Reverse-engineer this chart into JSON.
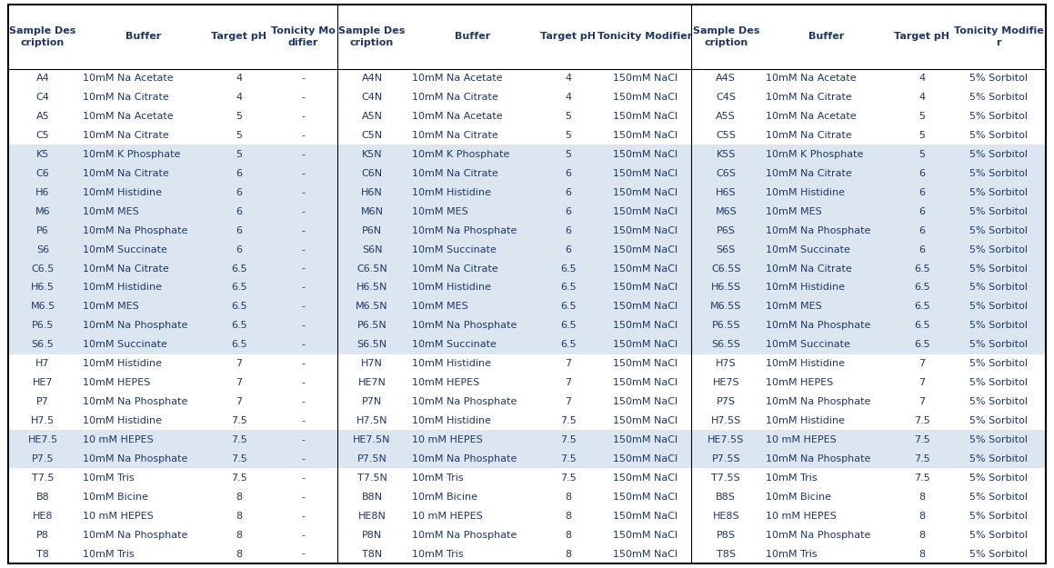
{
  "rows": [
    [
      "A4",
      "10mM Na Acetate",
      "4",
      "-",
      "A4N",
      "10mM Na Acetate",
      "4",
      "150mM NaCl",
      "A4S",
      "10mM Na Acetate",
      "4",
      "5% Sorbitol"
    ],
    [
      "C4",
      "10mM Na Citrate",
      "4",
      "-",
      "C4N",
      "10mM Na Citrate",
      "4",
      "150mM NaCl",
      "C4S",
      "10mM Na Citrate",
      "4",
      "5% Sorbitol"
    ],
    [
      "A5",
      "10mM Na Acetate",
      "5",
      "-",
      "A5N",
      "10mM Na Acetate",
      "5",
      "150mM NaCl",
      "A5S",
      "10mM Na Acetate",
      "5",
      "5% Sorbitol"
    ],
    [
      "C5",
      "10mM Na Citrate",
      "5",
      "-",
      "C5N",
      "10mM Na Citrate",
      "5",
      "150mM NaCl",
      "C5S",
      "10mM Na Citrate",
      "5",
      "5% Sorbitol"
    ],
    [
      "K5",
      "10mM K Phosphate",
      "5",
      "-",
      "K5N",
      "10mM K Phosphate",
      "5",
      "150mM NaCl",
      "K5S",
      "10mM K Phosphate",
      "5",
      "5% Sorbitol"
    ],
    [
      "C6",
      "10mM Na Citrate",
      "6",
      "-",
      "C6N",
      "10mM Na Citrate",
      "6",
      "150mM NaCl",
      "C6S",
      "10mM Na Citrate",
      "6",
      "5% Sorbitol"
    ],
    [
      "H6",
      "10mM Histidine",
      "6",
      "-",
      "H6N",
      "10mM Histidine",
      "6",
      "150mM NaCl",
      "H6S",
      "10mM Histidine",
      "6",
      "5% Sorbitol"
    ],
    [
      "M6",
      "10mM MES",
      "6",
      "-",
      "M6N",
      "10mM MES",
      "6",
      "150mM NaCl",
      "M6S",
      "10mM MES",
      "6",
      "5% Sorbitol"
    ],
    [
      "P6",
      "10mM Na Phosphate",
      "6",
      "-",
      "P6N",
      "10mM Na Phosphate",
      "6",
      "150mM NaCl",
      "P6S",
      "10mM Na Phosphate",
      "6",
      "5% Sorbitol"
    ],
    [
      "S6",
      "10mM Succinate",
      "6",
      "-",
      "S6N",
      "10mM Succinate",
      "6",
      "150mM NaCl",
      "S6S",
      "10mM Succinate",
      "6",
      "5% Sorbitol"
    ],
    [
      "C6.5",
      "10mM Na Citrate",
      "6.5",
      "-",
      "C6.5N",
      "10mM Na Citrate",
      "6.5",
      "150mM NaCl",
      "C6.5S",
      "10mM Na Citrate",
      "6.5",
      "5% Sorbitol"
    ],
    [
      "H6.5",
      "10mM Histidine",
      "6.5",
      "-",
      "H6.5N",
      "10mM Histidine",
      "6.5",
      "150mM NaCl",
      "H6.5S",
      "10mM Histidine",
      "6.5",
      "5% Sorbitol"
    ],
    [
      "M6.5",
      "10mM MES",
      "6.5",
      "-",
      "M6.5N",
      "10mM MES",
      "6.5",
      "150mM NaCl",
      "M6.5S",
      "10mM MES",
      "6.5",
      "5% Sorbitol"
    ],
    [
      "P6.5",
      "10mM Na Phosphate",
      "6.5",
      "-",
      "P6.5N",
      "10mM Na Phosphate",
      "6.5",
      "150mM NaCl",
      "P6.5S",
      "10mM Na Phosphate",
      "6.5",
      "5% Sorbitol"
    ],
    [
      "S6.5",
      "10mM Succinate",
      "6.5",
      "-",
      "S6.5N",
      "10mM Succinate",
      "6.5",
      "150mM NaCl",
      "S6.5S",
      "10mM Succinate",
      "6.5",
      "5% Sorbitol"
    ],
    [
      "H7",
      "10mM Histidine",
      "7",
      "-",
      "H7N",
      "10mM Histidine",
      "7",
      "150mM NaCl",
      "H7S",
      "10mM Histidine",
      "7",
      "5% Sorbitol"
    ],
    [
      "HE7",
      "10mM HEPES",
      "7",
      "-",
      "HE7N",
      "10mM HEPES",
      "7",
      "150mM NaCl",
      "HE7S",
      "10mM HEPES",
      "7",
      "5% Sorbitol"
    ],
    [
      "P7",
      "10mM Na Phosphate",
      "7",
      "-",
      "P7N",
      "10mM Na Phosphate",
      "7",
      "150mM NaCl",
      "P7S",
      "10mM Na Phosphate",
      "7",
      "5% Sorbitol"
    ],
    [
      "H7.5",
      "10mM Histidine",
      "7.5",
      "-",
      "H7.5N",
      "10mM Histidine",
      "7.5",
      "150mM NaCl",
      "H7.5S",
      "10mM Histidine",
      "7.5",
      "5% Sorbitol"
    ],
    [
      "HE7.5",
      "10 mM HEPES",
      "7.5",
      "-",
      "HE7.5N",
      "10 mM HEPES",
      "7.5",
      "150mM NaCl",
      "HE7.5S",
      "10 mM HEPES",
      "7.5",
      "5% Sorbitol"
    ],
    [
      "P7.5",
      "10mM Na Phosphate",
      "7.5",
      "-",
      "P7.5N",
      "10mM Na Phosphate",
      "7.5",
      "150mM NaCl",
      "P7.5S",
      "10mM Na Phosphate",
      "7.5",
      "5% Sorbitol"
    ],
    [
      "T7.5",
      "10mM Tris",
      "7.5",
      "-",
      "T7.5N",
      "10mM Tris",
      "7.5",
      "150mM NaCl",
      "T7.5S",
      "10mM Tris",
      "7.5",
      "5% Sorbitol"
    ],
    [
      "B8",
      "10mM Bicine",
      "8",
      "-",
      "B8N",
      "10mM Bicine",
      "8",
      "150mM NaCl",
      "B8S",
      "10mM Bicine",
      "8",
      "5% Sorbitol"
    ],
    [
      "HE8",
      "10 mM HEPES",
      "8",
      "-",
      "HE8N",
      "10 mM HEPES",
      "8",
      "150mM NaCl",
      "HE8S",
      "10 mM HEPES",
      "8",
      "5% Sorbitol"
    ],
    [
      "P8",
      "10mM Na Phosphate",
      "8",
      "-",
      "P8N",
      "10mM Na Phosphate",
      "8",
      "150mM NaCl",
      "P8S",
      "10mM Na Phosphate",
      "8",
      "5% Sorbitol"
    ],
    [
      "T8",
      "10mM Tris",
      "8",
      "-",
      "T8N",
      "10mM Tris",
      "8",
      "150mM NaCl",
      "T8S",
      "10mM Tris",
      "8",
      "5% Sorbitol"
    ]
  ],
  "header_rows": [
    [
      "Sample Des\ncription",
      "Buffer",
      "Target pH",
      "Tonicity Mo\ndifier",
      "Sample Des\ncription",
      "Buffer",
      "Target pH",
      "Tonicity Modifier",
      "Sample Des\ncription",
      "Buffer",
      "Target pH",
      "Tonicity Modifie\nr"
    ]
  ],
  "col_widths_norm": [
    0.72,
    1.38,
    0.63,
    0.72,
    0.72,
    1.38,
    0.63,
    0.98,
    0.72,
    1.38,
    0.63,
    0.98
  ],
  "row_bg_light": "#dce6f1",
  "row_bg_white": "#ffffff",
  "header_bg": "#ffffff",
  "text_color": "#1f3864",
  "font_size": 8.0,
  "header_font_size": 8.0,
  "light_rows": [
    4,
    5,
    6,
    7,
    8,
    9,
    10,
    11,
    12,
    13,
    14,
    19,
    20
  ],
  "border_color": "#000000",
  "separator_color": "#000000",
  "fig_w": 11.59,
  "fig_h": 6.25
}
